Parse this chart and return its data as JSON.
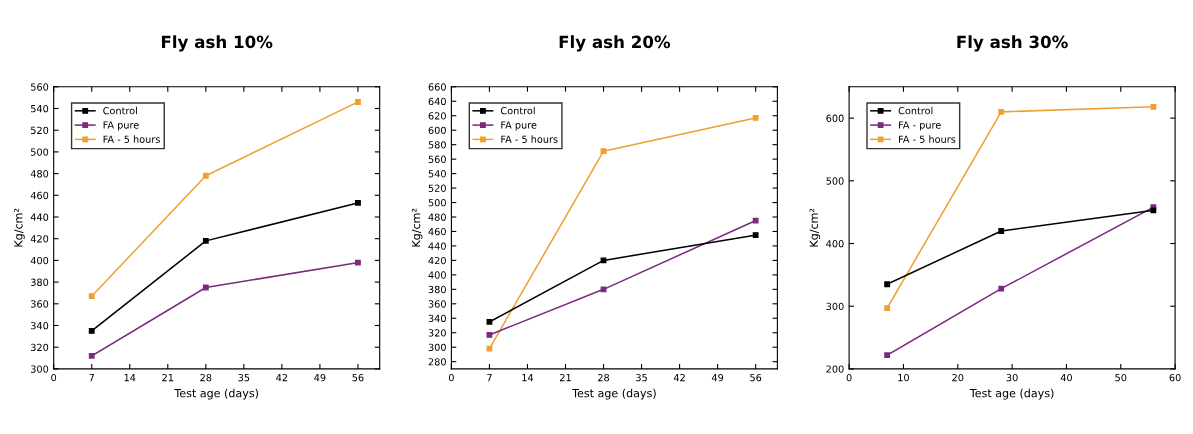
{
  "chart_data": [
    {
      "type": "line",
      "title": "Fly ash 10%",
      "xlabel": "Test age (days)",
      "ylabel": "Kg/cm²",
      "x": [
        7,
        28,
        56
      ],
      "xlim": [
        0,
        60
      ],
      "xticks": [
        0,
        7,
        14,
        21,
        28,
        35,
        42,
        49,
        56
      ],
      "ylim": [
        300,
        560
      ],
      "yticks": [
        300,
        320,
        340,
        360,
        380,
        400,
        420,
        440,
        460,
        480,
        500,
        520,
        540,
        560
      ],
      "marker": "square",
      "legend": "top left",
      "grid": false,
      "series": [
        {
          "name": "Control",
          "color": "#000000",
          "values": [
            335,
            418,
            453
          ]
        },
        {
          "name": "FA pure",
          "color": "#7b2a7f",
          "values": [
            312,
            375,
            398
          ]
        },
        {
          "name": "FA - 5 hours",
          "color": "#f0a030",
          "values": [
            367,
            478,
            546
          ]
        }
      ]
    },
    {
      "type": "line",
      "title": "Fly ash 20%",
      "xlabel": "Test age (days)",
      "ylabel": "Kg/cm²",
      "x": [
        7,
        28,
        56
      ],
      "xlim": [
        0,
        60
      ],
      "xticks": [
        0,
        7,
        14,
        21,
        28,
        35,
        42,
        49,
        56
      ],
      "ylim": [
        270,
        660
      ],
      "yticks": [
        280,
        300,
        320,
        340,
        360,
        380,
        400,
        420,
        440,
        460,
        480,
        500,
        520,
        540,
        560,
        580,
        600,
        620,
        640,
        660
      ],
      "marker": "square",
      "legend": "top left",
      "grid": false,
      "series": [
        {
          "name": "Control",
          "color": "#000000",
          "values": [
            335,
            420,
            455
          ]
        },
        {
          "name": "FA pure",
          "color": "#7b2a7f",
          "values": [
            317,
            380,
            475
          ]
        },
        {
          "name": "FA - 5 hours",
          "color": "#f0a030",
          "values": [
            298,
            571,
            617
          ]
        }
      ]
    },
    {
      "type": "line",
      "title": "Fly ash 30%",
      "xlabel": "Test age (days)",
      "ylabel": "Kg/cm²",
      "x": [
        7,
        28,
        56
      ],
      "xlim": [
        0,
        60
      ],
      "xticks": [
        0,
        10,
        20,
        30,
        40,
        50,
        60
      ],
      "ylim": [
        200,
        650
      ],
      "yticks": [
        200,
        300,
        400,
        500,
        600
      ],
      "marker": "square",
      "legend": "top left",
      "grid": false,
      "series": [
        {
          "name": "Control",
          "color": "#000000",
          "values": [
            335,
            420,
            453
          ]
        },
        {
          "name": "FA - pure",
          "color": "#7b2a7f",
          "values": [
            222,
            328,
            458
          ]
        },
        {
          "name": "FA - 5 hours",
          "color": "#f0a030",
          "values": [
            297,
            610,
            618
          ]
        }
      ]
    }
  ]
}
